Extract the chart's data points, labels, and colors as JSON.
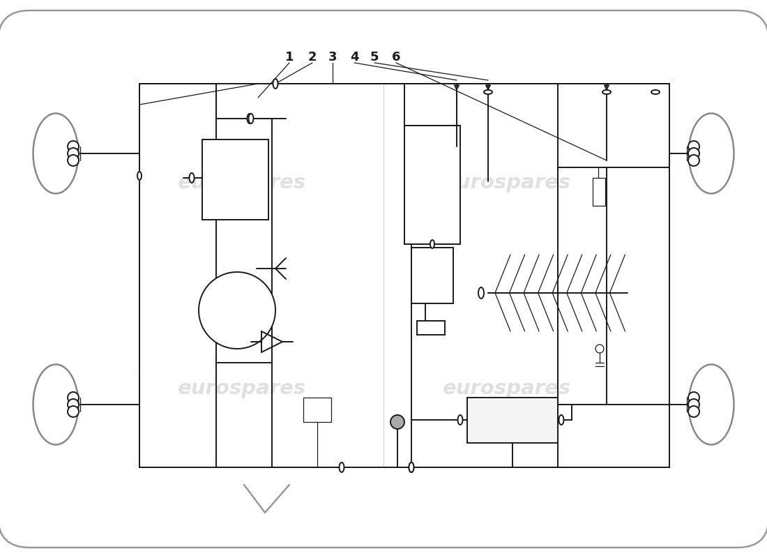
{
  "bg_color": "#ffffff",
  "line_color": "#1a1a1a",
  "watermark_color": "#cccccc",
  "part_numbers": [
    "1",
    "2",
    "3",
    "4",
    "5",
    "6"
  ],
  "lw_car": 1.8,
  "lw_main": 1.4,
  "lw_thin": 0.9
}
